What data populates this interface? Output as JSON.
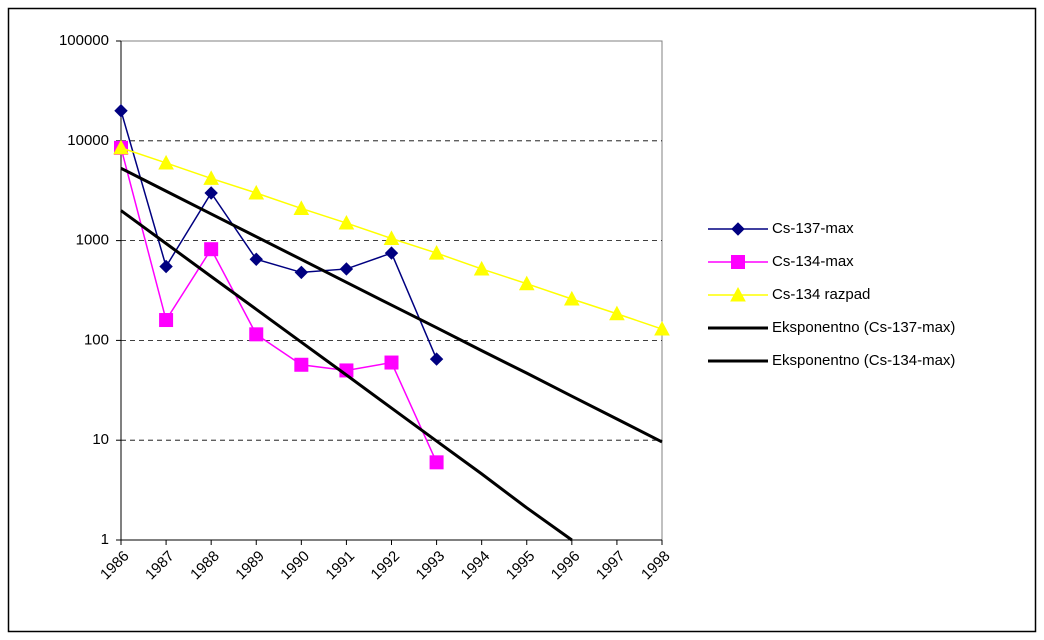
{
  "chart_data": {
    "type": "line",
    "categories": [
      "1986",
      "1987",
      "1988",
      "1989",
      "1990",
      "1991",
      "1992",
      "1993",
      "1994",
      "1995",
      "1996",
      "1997",
      "1998"
    ],
    "series": [
      {
        "name": "Cs-137-max",
        "color": "#000080",
        "marker": "diamond",
        "width": 1.5,
        "values": [
          20000,
          550,
          3000,
          650,
          480,
          520,
          750,
          65,
          null,
          null,
          null,
          null,
          null
        ]
      },
      {
        "name": "Cs-134-max",
        "color": "#ff00ff",
        "marker": "square",
        "width": 1.5,
        "values": [
          8500,
          160,
          820,
          115,
          57,
          50,
          60,
          6,
          null,
          null,
          null,
          null,
          null
        ]
      },
      {
        "name": "Cs-134 razpad",
        "color": "#ffff00",
        "marker": "triangle",
        "width": 1.5,
        "values": [
          8500,
          6000,
          4200,
          3000,
          2100,
          1500,
          1050,
          750,
          520,
          370,
          260,
          185,
          130
        ]
      },
      {
        "name": "Eksponentno (Cs-137-max)",
        "color": "#000000",
        "marker": "none",
        "width": 3,
        "values": [
          5300,
          3130,
          1850,
          1095,
          647,
          382,
          226,
          134,
          79,
          47,
          27.6,
          16.3,
          9.6
        ]
      },
      {
        "name": "Eksponentno (Cs-134-max)",
        "color": "#000000",
        "marker": "none",
        "width": 3,
        "values": [
          2000,
          935,
          437,
          205,
          96,
          45,
          21,
          9.8,
          4.6,
          2.1,
          1,
          null,
          null
        ]
      }
    ],
    "yscale": "log",
    "ylim": [
      1,
      100000
    ],
    "yticks": [
      1,
      10,
      100,
      1000,
      10000,
      100000
    ],
    "grid": true,
    "legend_position": "right"
  }
}
